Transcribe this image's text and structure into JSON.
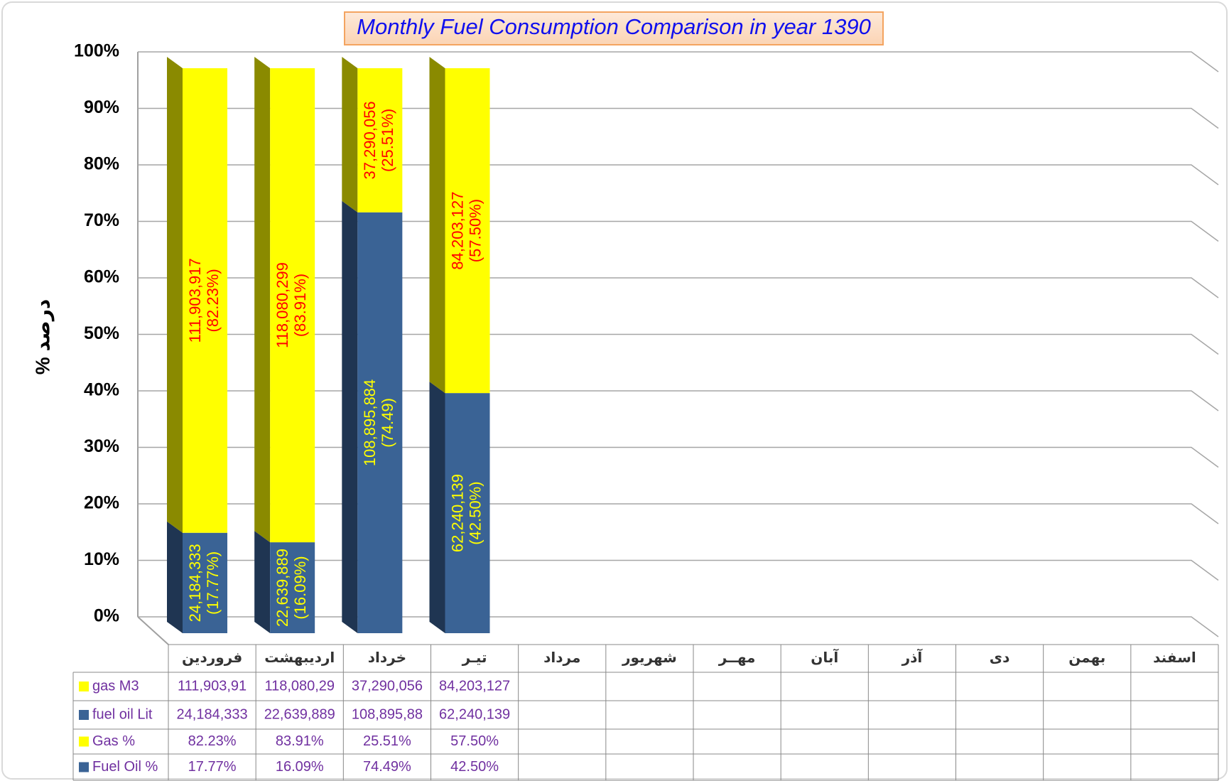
{
  "chart_data": {
    "type": "bar",
    "stacked": true,
    "title": "Monthly Fuel Consumption Comparison in year 1390",
    "y_label": "% درصد",
    "categories": [
      "فروردین",
      "اردیبهشت",
      "خرداد",
      "تیـر",
      "مرداد",
      "شهریور",
      "مهــر",
      "آبان",
      "آذر",
      "دی",
      "بهمن",
      "اسفند"
    ],
    "ylim": [
      0,
      100
    ],
    "yticks": [
      {
        "value": 0,
        "label": "0%"
      },
      {
        "value": 10,
        "label": "10%"
      },
      {
        "value": 20,
        "label": "20%"
      },
      {
        "value": 30,
        "label": "30%"
      },
      {
        "value": 40,
        "label": "40%"
      },
      {
        "value": 50,
        "label": "50%"
      },
      {
        "value": 60,
        "label": "60%"
      },
      {
        "value": 70,
        "label": "70%"
      },
      {
        "value": 80,
        "label": "80%"
      },
      {
        "value": 90,
        "label": "90%"
      },
      {
        "value": 100,
        "label": "100%"
      }
    ],
    "grid": true,
    "series": [
      {
        "name": "Fuel Oil %",
        "color": "#3a6395",
        "values": [
          17.77,
          16.09,
          74.49,
          42.5,
          null,
          null,
          null,
          null,
          null,
          null,
          null,
          null
        ],
        "value_labels": [
          "17.77%",
          "16.09%",
          "74.49%",
          "42.50%",
          null,
          null,
          null,
          null,
          null,
          null,
          null,
          null
        ],
        "data_labels": [
          [
            "24,184,333",
            "(17.77%)"
          ],
          [
            "22,639,889",
            "(16.09%)"
          ],
          [
            "108,895,884",
            "(74.49)"
          ],
          [
            "62,240,139",
            "(42.50%)"
          ],
          null,
          null,
          null,
          null,
          null,
          null,
          null,
          null
        ],
        "label_color": "#ffff00"
      },
      {
        "name": "Gas %",
        "color": "#ffff00",
        "values": [
          82.23,
          83.91,
          25.51,
          57.5,
          null,
          null,
          null,
          null,
          null,
          null,
          null,
          null
        ],
        "value_labels": [
          "82.23%",
          "83.91%",
          "25.51%",
          "57.50%",
          null,
          null,
          null,
          null,
          null,
          null,
          null,
          null
        ],
        "data_labels": [
          [
            "111,903,917",
            "(82.23%)"
          ],
          [
            "118,080,299",
            "(83.91%)"
          ],
          [
            "37,290,056",
            "(25.51%)"
          ],
          [
            "84,203,127",
            "(57.50%)"
          ],
          null,
          null,
          null,
          null,
          null,
          null,
          null,
          null
        ],
        "label_color": "#ff0000"
      }
    ],
    "data_table": [
      {
        "name": "gas M3",
        "color": "#ffff00",
        "cells": [
          "111,903,91",
          "118,080,29",
          "37,290,056",
          "84,203,127",
          null,
          null,
          null,
          null,
          null,
          null,
          null,
          null
        ]
      },
      {
        "name": "fuel oil Lit",
        "color": "#3a6395",
        "cells": [
          "24,184,333",
          "22,639,889",
          "108,895,88",
          "62,240,139",
          null,
          null,
          null,
          null,
          null,
          null,
          null,
          null
        ]
      },
      {
        "series": 1
      },
      {
        "series": 0
      }
    ]
  }
}
